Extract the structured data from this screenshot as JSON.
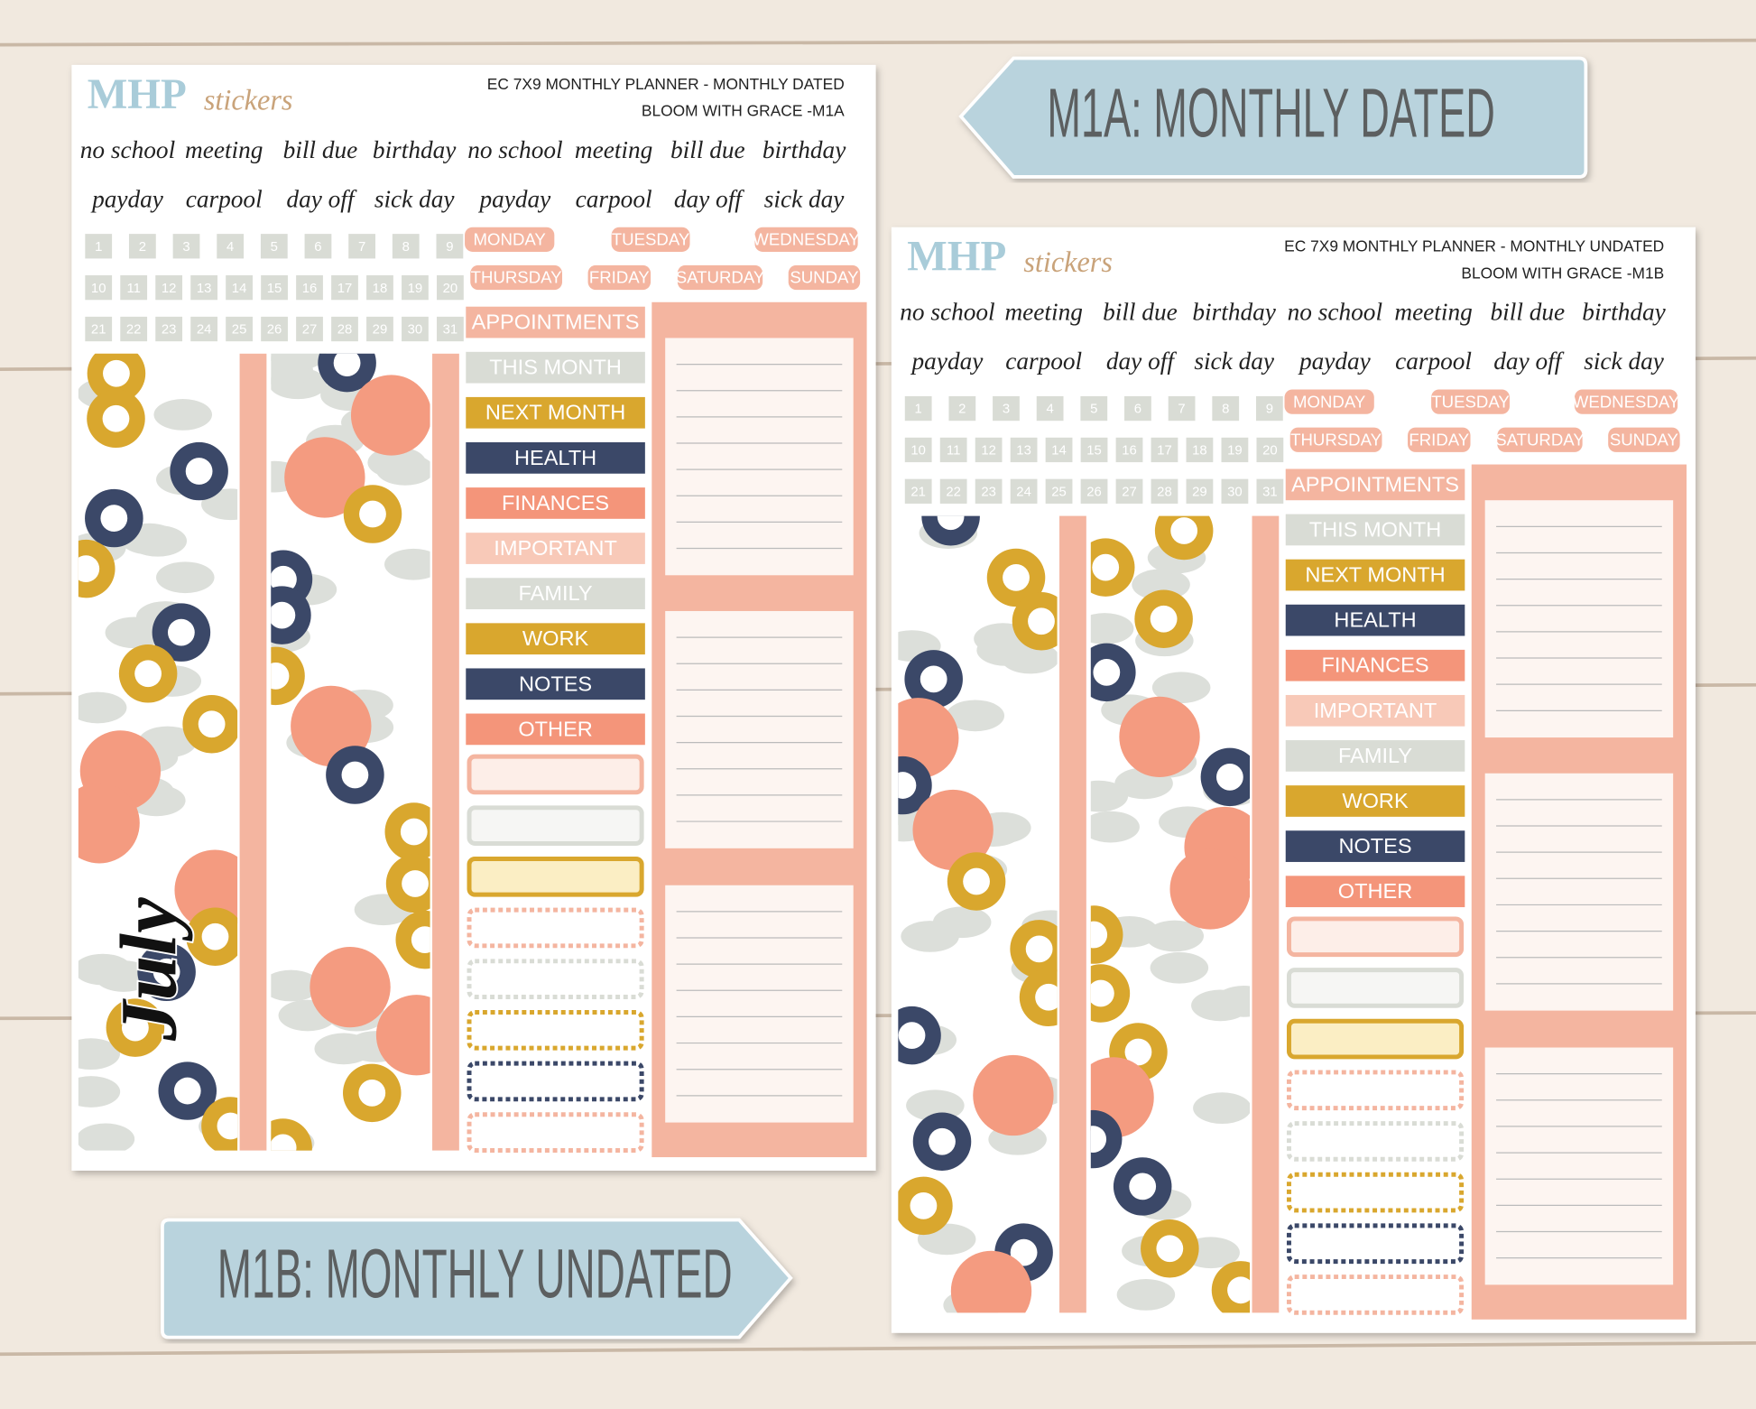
{
  "tags": [
    {
      "text": "M1A: MONTHLY DATED"
    },
    {
      "text": "M1B: MONTHLY UNDATED"
    }
  ],
  "sheets": [
    {
      "brand": "MHP",
      "brand_script": "stickers",
      "header": [
        "EC 7X9 MONTHLY PLANNER - MONTHLY DATED",
        "BLOOM WITH GRACE -M1A"
      ],
      "words": [
        [
          "no school",
          "meeting",
          "bill due",
          "birthday",
          "no school",
          "meeting",
          "bill due",
          "birthday"
        ],
        [
          "payday",
          "carpool",
          "day off",
          "sick day",
          "payday",
          "carpool",
          "day off",
          "sick day"
        ]
      ],
      "numbers": [
        1,
        2,
        3,
        4,
        5,
        6,
        7,
        8,
        9,
        10,
        11,
        12,
        13,
        14,
        15,
        16,
        17,
        18,
        19,
        20,
        21,
        22,
        23,
        24,
        25,
        26,
        27,
        28,
        29,
        30,
        31
      ],
      "days": [
        "MONDAY",
        "TUESDAY",
        "WEDNESDAY",
        "THURSDAY",
        "FRIDAY",
        "SATURDAY",
        "SUNDAY"
      ],
      "labels": [
        "APPOINTMENTS",
        "THIS MONTH",
        "NEXT MONTH",
        "HEALTH",
        "FINANCES",
        "IMPORTANT",
        "FAMILY",
        "WORK",
        "NOTES",
        "OTHER"
      ],
      "month": "July"
    },
    {
      "brand": "MHP",
      "brand_script": "stickers",
      "header": [
        "EC 7X9 MONTHLY PLANNER - MONTHLY UNDATED",
        "BLOOM WITH GRACE -M1B"
      ],
      "words": [
        [
          "no school",
          "meeting",
          "bill due",
          "birthday",
          "no school",
          "meeting",
          "bill due",
          "birthday"
        ],
        [
          "payday",
          "carpool",
          "day off",
          "sick day",
          "payday",
          "carpool",
          "day off",
          "sick day"
        ]
      ],
      "numbers": [
        1,
        2,
        3,
        4,
        5,
        6,
        7,
        8,
        9,
        10,
        11,
        12,
        13,
        14,
        15,
        16,
        17,
        18,
        19,
        20,
        21,
        22,
        23,
        24,
        25,
        26,
        27,
        28,
        29,
        30,
        31
      ],
      "days": [
        "MONDAY",
        "TUESDAY",
        "WEDNESDAY",
        "THURSDAY",
        "FRIDAY",
        "SATURDAY",
        "SUNDAY"
      ],
      "labels": [
        "APPOINTMENTS",
        "THIS MONTH",
        "NEXT MONTH",
        "HEALTH",
        "FINANCES",
        "IMPORTANT",
        "FAMILY",
        "WORK",
        "NOTES",
        "OTHER"
      ]
    }
  ]
}
